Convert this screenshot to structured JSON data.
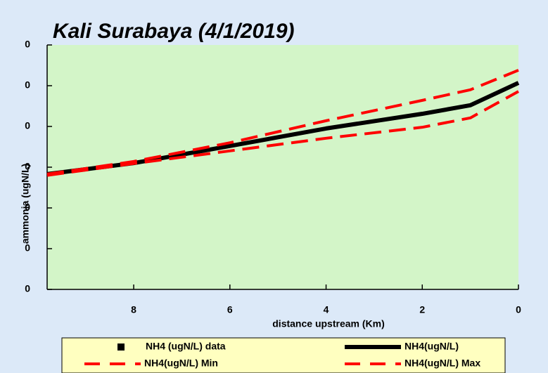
{
  "chart_data": {
    "type": "line",
    "title": "Kali Surabaya (4/1/2019)",
    "x_label": "distance upstream (Km)",
    "y_label": "ammonia (ugN/L)",
    "x": [
      9.8,
      8,
      6,
      4,
      2,
      1,
      0
    ],
    "series": [
      {
        "name": "NH4 (ugN/L) data",
        "color": "#000000",
        "values": [
          null,
          null,
          null,
          null,
          null,
          null,
          null
        ]
      },
      {
        "name": "NH4(ugN/L)",
        "color": "#000000",
        "values": [
          0.283,
          0.31,
          0.352,
          0.395,
          0.431,
          0.452,
          0.507
        ]
      },
      {
        "name": "NH4(ugN/L) Min",
        "color": "#ff0000",
        "values": [
          0.28,
          0.309,
          0.34,
          0.371,
          0.398,
          0.421,
          0.486
        ]
      },
      {
        "name": "NH4(ugN/L) Max",
        "color": "#ff0000",
        "values": [
          0.283,
          0.314,
          0.36,
          0.414,
          0.464,
          0.49,
          0.538
        ]
      }
    ],
    "xlim": [
      9.8,
      0
    ],
    "xticks": [
      8,
      6,
      4,
      2,
      0
    ],
    "ylim": [
      0,
      0.6
    ],
    "yticks": [
      {
        "value": 0,
        "label": "0"
      },
      {
        "value": 0.1,
        "label": "0"
      },
      {
        "value": 0.2,
        "label": "0"
      },
      {
        "value": 0.3,
        "label": "0"
      },
      {
        "value": 0.4,
        "label": "0"
      },
      {
        "value": 0.5,
        "label": "0"
      },
      {
        "value": 0.6,
        "label": "0"
      }
    ],
    "legend": "bottom"
  }
}
